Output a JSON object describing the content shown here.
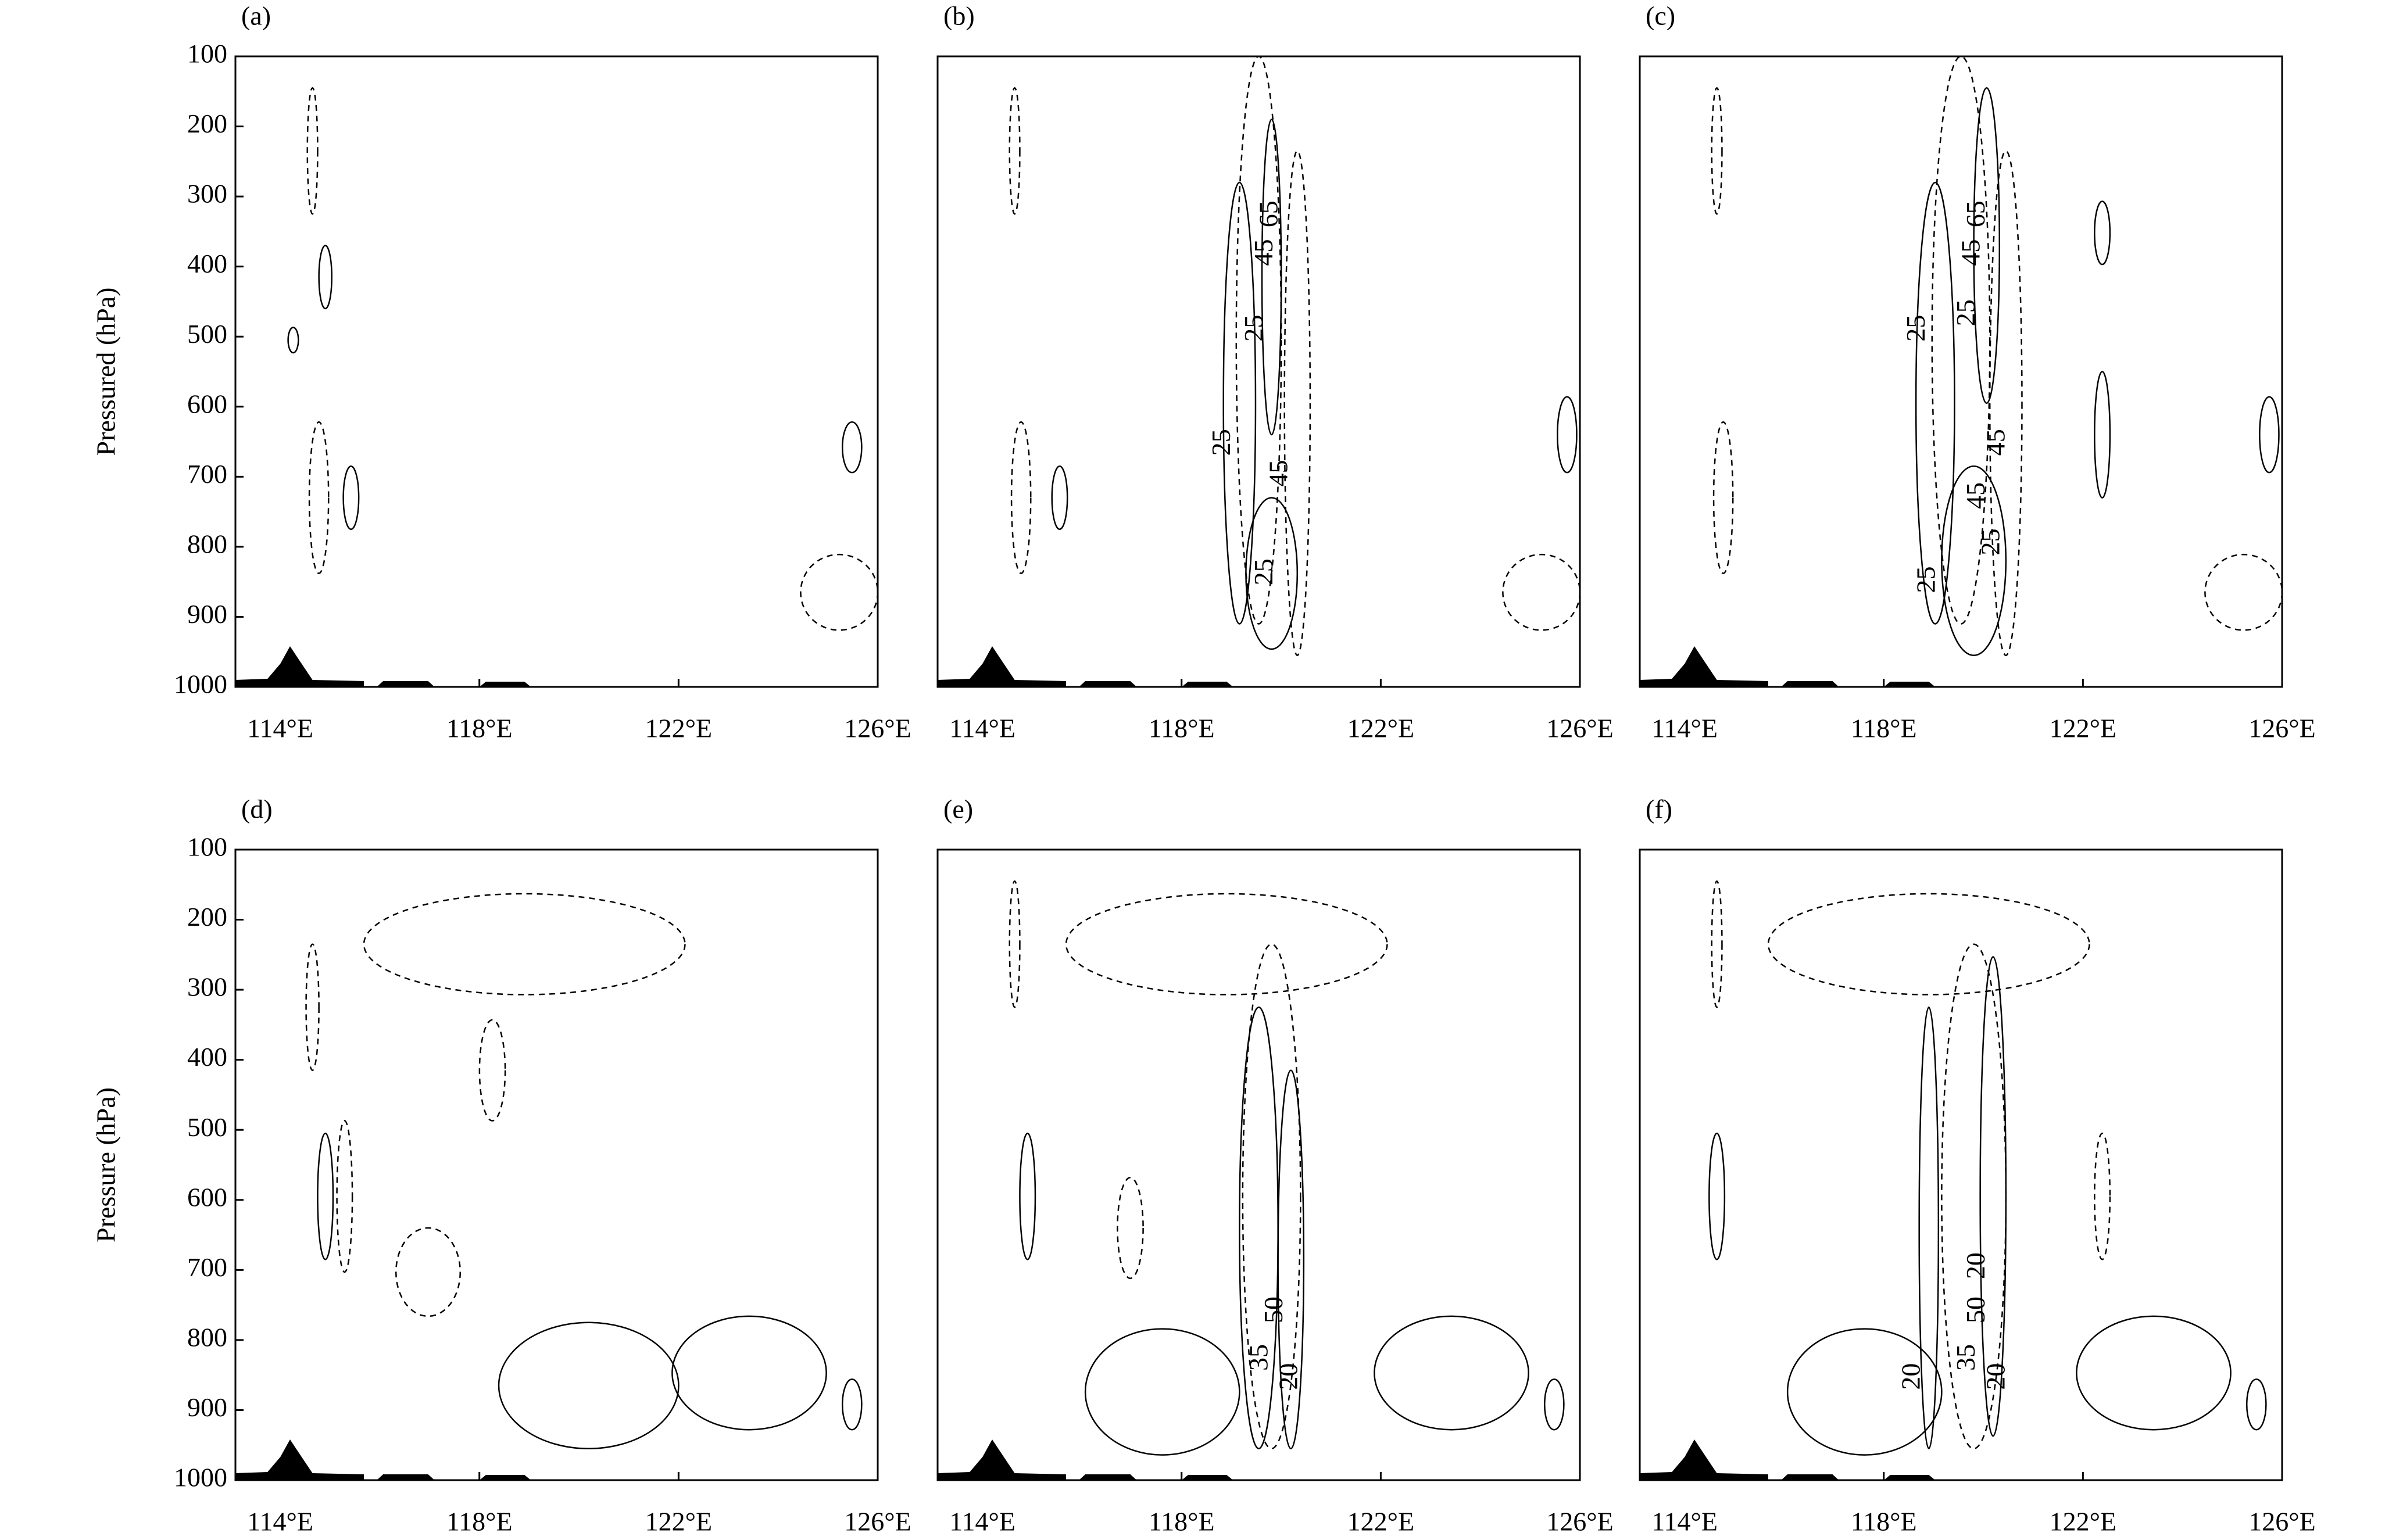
{
  "chart_data": [
    {
      "type": "contour",
      "panel_label": "(a)",
      "ylabel": "Pressured (hPa)",
      "xlim": [
        113.1,
        126
      ],
      "ylim": [
        1000,
        100
      ],
      "yticks": [
        100,
        200,
        300,
        400,
        500,
        600,
        700,
        800,
        900,
        1000
      ],
      "xticks": [
        {
          "value": 114,
          "label": "114°E"
        },
        {
          "value": 118,
          "label": "118°E"
        },
        {
          "value": 122,
          "label": "122°E"
        },
        {
          "value": 126,
          "label": "126°E"
        }
      ],
      "annotations": []
    },
    {
      "type": "contour",
      "panel_label": "(b)",
      "xlim": [
        113.1,
        126
      ],
      "ylim": [
        1000,
        100
      ],
      "xticks": [
        {
          "value": 114,
          "label": "114°E"
        },
        {
          "value": 118,
          "label": "118°E"
        },
        {
          "value": 122,
          "label": "122°E"
        },
        {
          "value": 126,
          "label": "126°E"
        }
      ],
      "annotations": [
        {
          "text": "25",
          "x": 118.85,
          "y": 651
        },
        {
          "text": "45",
          "x": 120.0,
          "y": 695
        },
        {
          "text": "25",
          "x": 119.5,
          "y": 488
        },
        {
          "text": "45",
          "x": 119.7,
          "y": 380
        },
        {
          "text": "65",
          "x": 119.8,
          "y": 325
        },
        {
          "text": "25",
          "x": 119.7,
          "y": 836
        }
      ]
    },
    {
      "type": "contour",
      "panel_label": "(c)",
      "xlim": [
        113.1,
        126
      ],
      "ylim": [
        1000,
        100
      ],
      "xticks": [
        {
          "value": 114,
          "label": "114°E"
        },
        {
          "value": 118,
          "label": "118°E"
        },
        {
          "value": 122,
          "label": "122°E"
        },
        {
          "value": 126,
          "label": "126°E"
        }
      ],
      "annotations": [
        {
          "text": "25",
          "x": 118.7,
          "y": 488
        },
        {
          "text": "25",
          "x": 119.7,
          "y": 466
        },
        {
          "text": "45",
          "x": 119.8,
          "y": 380
        },
        {
          "text": "65",
          "x": 119.9,
          "y": 325
        },
        {
          "text": "45",
          "x": 119.9,
          "y": 727
        },
        {
          "text": "45",
          "x": 120.3,
          "y": 651
        },
        {
          "text": "25",
          "x": 120.2,
          "y": 793
        },
        {
          "text": "25",
          "x": 118.9,
          "y": 847
        }
      ]
    },
    {
      "type": "contour",
      "panel_label": "(d)",
      "ylabel": "Pressure (hPa)",
      "xlim": [
        113.1,
        126
      ],
      "ylim": [
        1000,
        100
      ],
      "yticks": [
        100,
        200,
        300,
        400,
        500,
        600,
        700,
        800,
        900,
        1000
      ],
      "xticks": [
        {
          "value": 114,
          "label": "114°E"
        },
        {
          "value": 118,
          "label": "118°E"
        },
        {
          "value": 122,
          "label": "122°E"
        },
        {
          "value": 126,
          "label": "126°E"
        }
      ],
      "annotations": []
    },
    {
      "type": "contour",
      "panel_label": "(e)",
      "xlim": [
        113.1,
        126
      ],
      "ylim": [
        1000,
        100
      ],
      "xticks": [
        {
          "value": 114,
          "label": "114°E"
        },
        {
          "value": 118,
          "label": "118°E"
        },
        {
          "value": 122,
          "label": "122°E"
        },
        {
          "value": 126,
          "label": "126°E"
        }
      ],
      "annotations": [
        {
          "text": "35",
          "x": 119.6,
          "y": 825
        },
        {
          "text": "50",
          "x": 119.9,
          "y": 757
        },
        {
          "text": "20",
          "x": 120.2,
          "y": 852
        }
      ]
    },
    {
      "type": "contour",
      "panel_label": "(f)",
      "xlim": [
        113.1,
        126
      ],
      "ylim": [
        1000,
        100
      ],
      "xticks": [
        {
          "value": 114,
          "label": "114°E"
        },
        {
          "value": 118,
          "label": "118°E"
        },
        {
          "value": 122,
          "label": "122°E"
        },
        {
          "value": 126,
          "label": "126°E"
        }
      ],
      "annotations": [
        {
          "text": "20",
          "x": 118.6,
          "y": 852
        },
        {
          "text": "35",
          "x": 119.7,
          "y": 825
        },
        {
          "text": "50",
          "x": 119.9,
          "y": 757
        },
        {
          "text": "20",
          "x": 120.3,
          "y": 852
        },
        {
          "text": "20",
          "x": 119.9,
          "y": 694
        }
      ]
    }
  ]
}
